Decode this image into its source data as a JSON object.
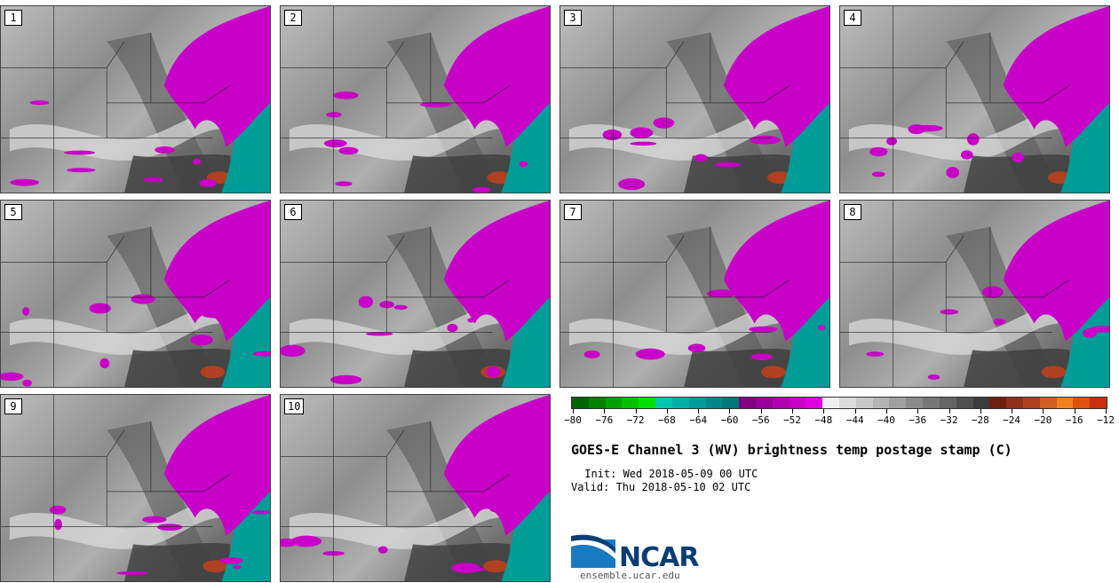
{
  "title": "GOES-E Channel 3 (WV) brightness temp postage stamp (C)",
  "init": " Init: Wed 2018-05-09 00 UTC",
  "valid": "Valid: Thu 2018-05-10 02 UTC",
  "logo_text": "NCAR",
  "logo_url": "ensemble.ucar.edu",
  "panels": [
    {
      "label": "1"
    },
    {
      "label": "2"
    },
    {
      "label": "3"
    },
    {
      "label": "4"
    },
    {
      "label": "5"
    },
    {
      "label": "6"
    },
    {
      "label": "7"
    },
    {
      "label": "8"
    },
    {
      "label": "9"
    },
    {
      "label": "10"
    }
  ],
  "colorbar": {
    "tick_labels": [
      "-80",
      "-76",
      "-72",
      "-68",
      "-64",
      "-60",
      "-56",
      "-52",
      "-48",
      "-44",
      "-40",
      "-36",
      "-32",
      "-28",
      "-24",
      "-20",
      "-16",
      "-12"
    ],
    "colors": [
      "#006400",
      "#008000",
      "#00a000",
      "#00c000",
      "#00e000",
      "#00c8b0",
      "#00b0a8",
      "#009c98",
      "#008888",
      "#007878",
      "#800080",
      "#9a009a",
      "#b000b0",
      "#c800c8",
      "#e000e0",
      "#f0f0f0",
      "#dcdcdc",
      "#c8c8c8",
      "#b4b4b4",
      "#a0a0a0",
      "#8c8c8c",
      "#787878",
      "#646464",
      "#505050",
      "#3c3c3c",
      "#702010",
      "#903018",
      "#b04020",
      "#d06020",
      "#f08020",
      "#e05010",
      "#c83010"
    ]
  }
}
